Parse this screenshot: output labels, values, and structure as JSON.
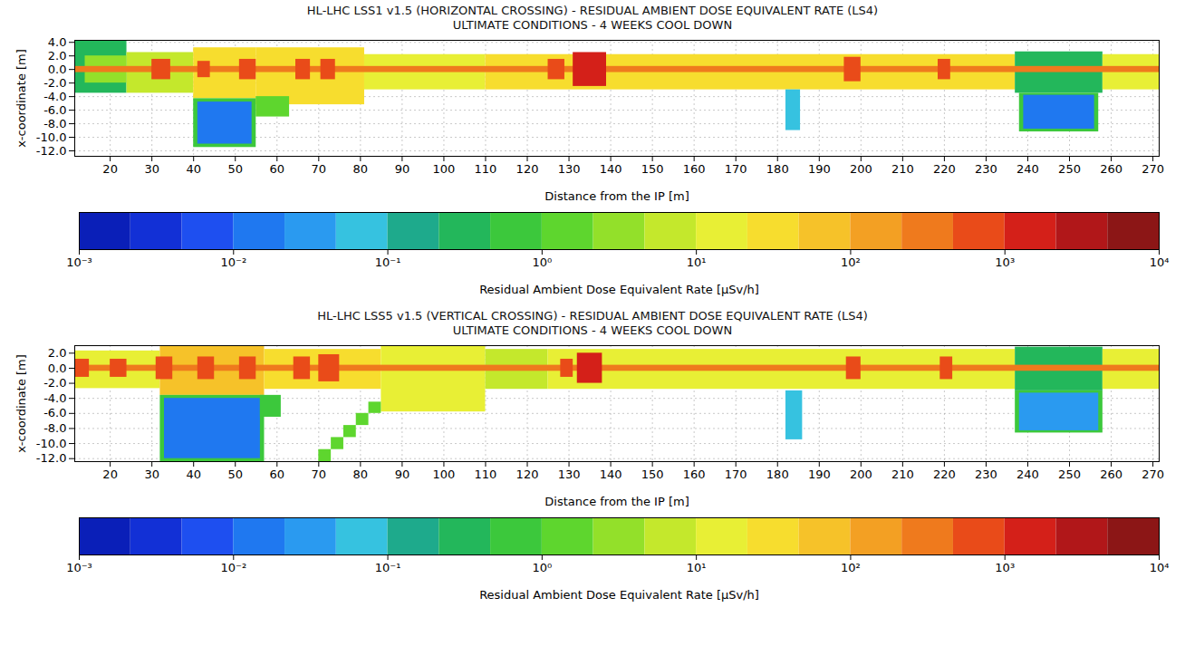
{
  "chart_data": [
    {
      "type": "heatmap",
      "title": "HL-LHC LSS1 v1.5 (HORIZONTAL CROSSING) - RESIDUAL AMBIENT DOSE EQUIVALENT RATE (LS4)",
      "subtitle": "ULTIMATE CONDITIONS - 4 WEEKS COOL DOWN",
      "x_label": "Distance from the IP [m]",
      "y_label": "x-coordinate [m]",
      "xlim": [
        11.5,
        271.5
      ],
      "ylim": [
        -12.8,
        4.3
      ],
      "xticks": [
        20,
        30,
        40,
        50,
        60,
        70,
        80,
        90,
        100,
        110,
        120,
        130,
        140,
        150,
        160,
        170,
        180,
        190,
        200,
        210,
        220,
        230,
        240,
        250,
        260,
        270
      ],
      "yticks": [
        {
          "value": 4,
          "label": "4.0"
        },
        {
          "value": 2,
          "label": "2.0"
        },
        {
          "value": 0,
          "label": "0.0"
        },
        {
          "value": -2,
          "label": "-2.0"
        },
        {
          "value": -4,
          "label": "-4.0"
        },
        {
          "value": -6,
          "label": "-6.0"
        },
        {
          "value": -8,
          "label": "-8.0"
        },
        {
          "value": -10,
          "label": "-10.0"
        },
        {
          "value": -12,
          "label": "-12.0"
        }
      ],
      "grid": true,
      "log": true,
      "cells": [
        {
          "x1": 11.5,
          "x2": 24,
          "y1": -3.5,
          "y2": 4.3,
          "value": 0.4
        },
        {
          "x1": 14,
          "x2": 24,
          "y1": -2,
          "y2": 2,
          "value": 3
        },
        {
          "x1": 24,
          "x2": 40,
          "y1": -3.5,
          "y2": 2.5,
          "value": 8
        },
        {
          "x1": 40,
          "x2": 55,
          "y1": -4.3,
          "y2": 3.2,
          "value": 25
        },
        {
          "x1": 55,
          "x2": 81,
          "y1": -5.2,
          "y2": 3.2,
          "value": 40
        },
        {
          "x1": 81,
          "x2": 110,
          "y1": -3,
          "y2": 2.2,
          "value": 12
        },
        {
          "x1": 110,
          "x2": 237,
          "y1": -3,
          "y2": 2.2,
          "value": 25
        },
        {
          "x1": 237,
          "x2": 258,
          "y1": -3.5,
          "y2": 2.6,
          "value": 0.3
        },
        {
          "x1": 238,
          "x2": 257,
          "y1": -9.2,
          "y2": -3.5,
          "value": 0.6
        },
        {
          "x1": 239,
          "x2": 256,
          "y1": -8.8,
          "y2": -3.8,
          "value": 0.015
        },
        {
          "x1": 258,
          "x2": 271.5,
          "y1": -3,
          "y2": 2.2,
          "value": 20
        },
        {
          "x1": 40,
          "x2": 55,
          "y1": -11.5,
          "y2": -4.3,
          "value": 0.8
        },
        {
          "x1": 41,
          "x2": 54,
          "y1": -11,
          "y2": -4.8,
          "value": 0.012
        },
        {
          "x1": 55,
          "x2": 63,
          "y1": -7,
          "y2": -4,
          "value": 1.5
        },
        {
          "x1": 182,
          "x2": 185.5,
          "y1": -9,
          "y2": -3,
          "value": 0.05
        },
        {
          "x1": 11.5,
          "x2": 271.5,
          "y1": -0.45,
          "y2": 0.45,
          "value": 250
        },
        {
          "x1": 30,
          "x2": 34.5,
          "y1": -1.5,
          "y2": 1.5,
          "value": 700
        },
        {
          "x1": 41,
          "x2": 44,
          "y1": -1.2,
          "y2": 1.2,
          "value": 500
        },
        {
          "x1": 51,
          "x2": 55,
          "y1": -1.5,
          "y2": 1.5,
          "value": 700
        },
        {
          "x1": 64.5,
          "x2": 68,
          "y1": -1.5,
          "y2": 1.5,
          "value": 700
        },
        {
          "x1": 70.5,
          "x2": 74,
          "y1": -1.5,
          "y2": 1.5,
          "value": 700
        },
        {
          "x1": 125,
          "x2": 129,
          "y1": -1.5,
          "y2": 1.5,
          "value": 800
        },
        {
          "x1": 131,
          "x2": 139,
          "y1": -2.5,
          "y2": 2.5,
          "value": 1800
        },
        {
          "x1": 196,
          "x2": 200,
          "y1": -1.8,
          "y2": 1.8,
          "value": 900
        },
        {
          "x1": 218.5,
          "x2": 221.5,
          "y1": -1.5,
          "y2": 1.5,
          "value": 900
        }
      ],
      "colorbar": {
        "label": "Residual Ambient Dose Equivalent Rate [μSv/h]",
        "range": [
          0.001,
          10000
        ],
        "ticks": [
          {
            "value": 0.001,
            "label": "10⁻³"
          },
          {
            "value": 0.01,
            "label": "10⁻²"
          },
          {
            "value": 0.1,
            "label": "10⁻¹"
          },
          {
            "value": 1,
            "label": "10⁰"
          },
          {
            "value": 10,
            "label": "10¹"
          },
          {
            "value": 100,
            "label": "10²"
          },
          {
            "value": 1000,
            "label": "10³"
          },
          {
            "value": 10000,
            "label": "10⁴"
          }
        ],
        "colors": [
          "#0a1fb8",
          "#1230d6",
          "#1e4ff0",
          "#1f78f0",
          "#2a9af0",
          "#36c2e0",
          "#1eaa8c",
          "#23b75b",
          "#3cc83c",
          "#5ed62e",
          "#93e02a",
          "#c4e82c",
          "#e8ef35",
          "#f7dd2e",
          "#f6c229",
          "#f3a023",
          "#ef7a1d",
          "#e94b19",
          "#d42019",
          "#b11719",
          "#8c1616"
        ]
      }
    },
    {
      "type": "heatmap",
      "title": "HL-LHC LSS5 v1.5 (VERTICAL CROSSING) - RESIDUAL AMBIENT DOSE EQUIVALENT RATE (LS4)",
      "subtitle": "ULTIMATE CONDITIONS - 4 WEEKS COOL DOWN",
      "x_label": "Distance from the IP [m]",
      "y_label": "x-coordinate [m]",
      "xlim": [
        11.5,
        271.5
      ],
      "ylim": [
        -12.4,
        3.0
      ],
      "xticks": [
        20,
        30,
        40,
        50,
        60,
        70,
        80,
        90,
        100,
        110,
        120,
        130,
        140,
        150,
        160,
        170,
        180,
        190,
        200,
        210,
        220,
        230,
        240,
        250,
        260,
        270
      ],
      "yticks": [
        {
          "value": 2,
          "label": "2.0"
        },
        {
          "value": 0,
          "label": "0.0"
        },
        {
          "value": -2,
          "label": "-2.0"
        },
        {
          "value": -4,
          "label": "-4.0"
        },
        {
          "value": -6,
          "label": "-6.0"
        },
        {
          "value": -8,
          "label": "-8.0"
        },
        {
          "value": -10,
          "label": "-10.0"
        },
        {
          "value": -12,
          "label": "-12.0"
        }
      ],
      "grid": true,
      "log": true,
      "cells": [
        {
          "x1": 11.5,
          "x2": 32,
          "y1": -2.7,
          "y2": 2.3,
          "value": 20
        },
        {
          "x1": 32,
          "x2": 57,
          "y1": -3.6,
          "y2": 3,
          "value": 60
        },
        {
          "x1": 57,
          "x2": 85,
          "y1": -2.8,
          "y2": 2.5,
          "value": 35
        },
        {
          "x1": 85,
          "x2": 110,
          "y1": -5.8,
          "y2": 3,
          "value": 20
        },
        {
          "x1": 110,
          "x2": 125,
          "y1": -2.8,
          "y2": 2.5,
          "value": 8
        },
        {
          "x1": 125,
          "x2": 237,
          "y1": -2.8,
          "y2": 2.5,
          "value": 20
        },
        {
          "x1": 237,
          "x2": 258,
          "y1": -3,
          "y2": 2.8,
          "value": 0.4
        },
        {
          "x1": 237,
          "x2": 258,
          "y1": -8.6,
          "y2": -3,
          "value": 0.6
        },
        {
          "x1": 238,
          "x2": 257,
          "y1": -8.3,
          "y2": -3.3,
          "value": 0.03
        },
        {
          "x1": 258,
          "x2": 271.5,
          "y1": -2.8,
          "y2": 2.5,
          "value": 15
        },
        {
          "x1": 32,
          "x2": 57,
          "y1": -12.4,
          "y2": -3.6,
          "value": 0.8
        },
        {
          "x1": 33,
          "x2": 56,
          "y1": -12,
          "y2": -4,
          "value": 0.012
        },
        {
          "x1": 56,
          "x2": 61,
          "y1": -6.5,
          "y2": -3.6,
          "value": 0.8
        },
        {
          "x1": 70,
          "x2": 73,
          "y1": -12.4,
          "y2": -10.8,
          "value": 1.2
        },
        {
          "x1": 73,
          "x2": 76,
          "y1": -10.8,
          "y2": -9.2,
          "value": 1.2
        },
        {
          "x1": 76,
          "x2": 79,
          "y1": -9.2,
          "y2": -7.6,
          "value": 1.2
        },
        {
          "x1": 79,
          "x2": 82,
          "y1": -7.6,
          "y2": -6,
          "value": 1.2
        },
        {
          "x1": 82,
          "x2": 85,
          "y1": -6,
          "y2": -4.5,
          "value": 1.2
        },
        {
          "x1": 182,
          "x2": 186,
          "y1": -9.5,
          "y2": -3,
          "value": 0.05
        },
        {
          "x1": 11.5,
          "x2": 271.5,
          "y1": -0.4,
          "y2": 0.4,
          "value": 300
        },
        {
          "x1": 11.5,
          "x2": 15,
          "y1": -1.2,
          "y2": 1.2,
          "value": 900
        },
        {
          "x1": 20,
          "x2": 24,
          "y1": -1.2,
          "y2": 1.2,
          "value": 700
        },
        {
          "x1": 31,
          "x2": 35,
          "y1": -1.5,
          "y2": 1.5,
          "value": 600
        },
        {
          "x1": 41,
          "x2": 45,
          "y1": -1.5,
          "y2": 1.5,
          "value": 600
        },
        {
          "x1": 51,
          "x2": 55,
          "y1": -1.5,
          "y2": 1.5,
          "value": 600
        },
        {
          "x1": 64,
          "x2": 68,
          "y1": -1.5,
          "y2": 1.5,
          "value": 700
        },
        {
          "x1": 70,
          "x2": 75,
          "y1": -1.8,
          "y2": 1.8,
          "value": 900
        },
        {
          "x1": 128,
          "x2": 131,
          "y1": -1.2,
          "y2": 1.2,
          "value": 600
        },
        {
          "x1": 132,
          "x2": 138,
          "y1": -2,
          "y2": 2,
          "value": 1500
        },
        {
          "x1": 196.5,
          "x2": 200,
          "y1": -1.5,
          "y2": 1.5,
          "value": 900
        },
        {
          "x1": 219,
          "x2": 222,
          "y1": -1.5,
          "y2": 1.5,
          "value": 900
        }
      ],
      "colorbar": {
        "label": "Residual Ambient Dose Equivalent Rate [μSv/h]",
        "range": [
          0.001,
          10000
        ],
        "ticks": [
          {
            "value": 0.001,
            "label": "10⁻³"
          },
          {
            "value": 0.01,
            "label": "10⁻²"
          },
          {
            "value": 0.1,
            "label": "10⁻¹"
          },
          {
            "value": 1,
            "label": "10⁰"
          },
          {
            "value": 10,
            "label": "10¹"
          },
          {
            "value": 100,
            "label": "10²"
          },
          {
            "value": 1000,
            "label": "10³"
          },
          {
            "value": 10000,
            "label": "10⁴"
          }
        ],
        "colors": [
          "#0a1fb8",
          "#1230d6",
          "#1e4ff0",
          "#1f78f0",
          "#2a9af0",
          "#36c2e0",
          "#1eaa8c",
          "#23b75b",
          "#3cc83c",
          "#5ed62e",
          "#93e02a",
          "#c4e82c",
          "#e8ef35",
          "#f7dd2e",
          "#f6c229",
          "#f3a023",
          "#ef7a1d",
          "#e94b19",
          "#d42019",
          "#b11719",
          "#8c1616"
        ]
      }
    }
  ]
}
